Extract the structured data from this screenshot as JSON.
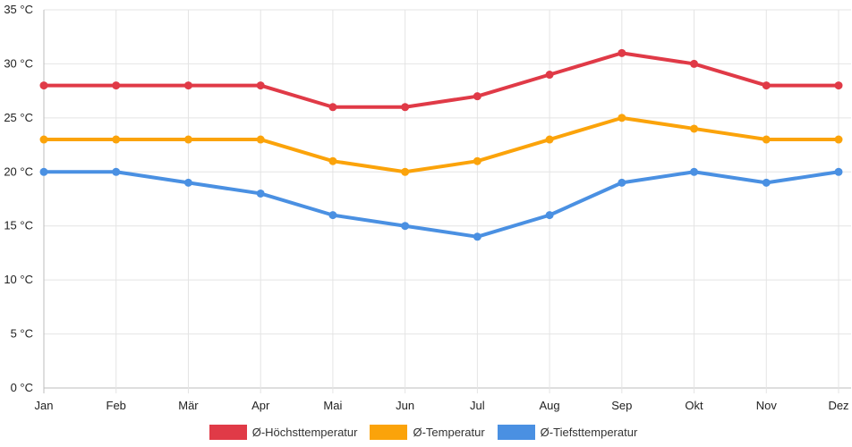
{
  "chart_data": {
    "type": "line",
    "title": "",
    "xlabel": "",
    "ylabel": "",
    "categories": [
      "Jan",
      "Feb",
      "Mär",
      "Apr",
      "Mai",
      "Jun",
      "Jul",
      "Aug",
      "Sep",
      "Okt",
      "Nov",
      "Dez"
    ],
    "ylim": [
      0,
      35
    ],
    "ytick_step": 5,
    "ytick_labels": [
      "0 °C",
      "5 °C",
      "10 °C",
      "15 °C",
      "20 °C",
      "25 °C",
      "30 °C",
      "35 °C"
    ],
    "grid": true,
    "legend_position": "bottom",
    "series": [
      {
        "name": "Ø-Höchsttemperatur",
        "color": "#e03a47",
        "values": [
          28,
          28,
          28,
          28,
          26,
          26,
          27,
          29,
          31,
          30,
          28,
          28
        ]
      },
      {
        "name": "Ø-Temperatur",
        "color": "#fba30a",
        "values": [
          23,
          23,
          23,
          23,
          21,
          20,
          21,
          23,
          25,
          24,
          23,
          23
        ]
      },
      {
        "name": "Ø-Tiefsttemperatur",
        "color": "#4a90e2",
        "values": [
          20,
          20,
          19,
          18,
          16,
          15,
          14,
          16,
          19,
          20,
          19,
          20
        ]
      }
    ]
  }
}
